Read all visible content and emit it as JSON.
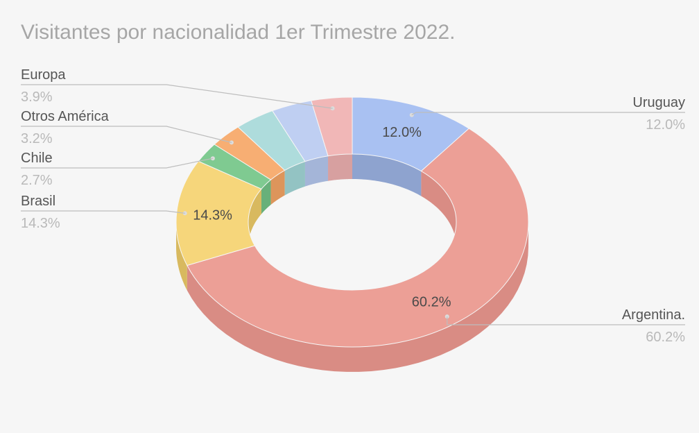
{
  "chart_data": {
    "type": "pie",
    "variant": "3d-donut",
    "title": "Visitantes por nacionalidad 1er Trimestre 2022.",
    "slices": [
      {
        "name": "Uruguay",
        "value": 12.0,
        "label": "12.0%",
        "color": "#a9c1f2",
        "side_color": "#8ea3cf",
        "inner_label": "12.0%"
      },
      {
        "name": "Argentina.",
        "value": 60.2,
        "label": "60.2%",
        "color": "#ec9f96",
        "side_color": "#d98c84",
        "inner_label": "60.2%"
      },
      {
        "name": "Brasil",
        "value": 14.3,
        "label": "14.3%",
        "color": "#f6d67b",
        "side_color": "#d8b95f",
        "inner_label": "14.3%"
      },
      {
        "name": "Chile",
        "value": 2.7,
        "label": "2.7%",
        "color": "#7fca91",
        "side_color": "#68b07a",
        "inner_label": ""
      },
      {
        "name": "Otros América",
        "value": 3.2,
        "label": "3.2%",
        "color": "#f7ae73",
        "side_color": "#dd955b",
        "inner_label": ""
      },
      {
        "name": "",
        "value": 3.9,
        "label": "",
        "color": "#aedcdc",
        "side_color": "#93c3c3",
        "inner_label": ""
      },
      {
        "name": "",
        "value": 3.9,
        "label": "",
        "color": "#bfcff2",
        "side_color": "#a4b5d8",
        "inner_label": ""
      },
      {
        "name": "Europa",
        "value": 3.9,
        "label": "3.9%",
        "color": "#f1b7b7",
        "side_color": "#d7a0a0",
        "inner_label": ""
      }
    ],
    "legend_position": "outside-labels"
  }
}
